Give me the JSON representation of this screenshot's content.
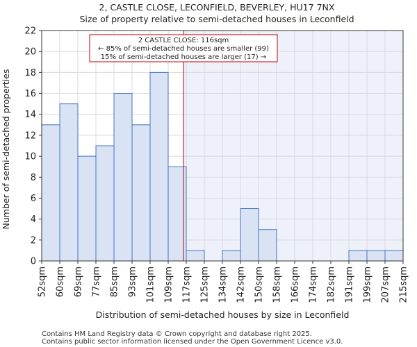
{
  "chart_data": {
    "type": "bar",
    "title_line1": "2, CASTLE CLOSE, LECONFIELD, BEVERLEY, HU17 7NX",
    "title_line2": "Size of property relative to semi-detached houses in Leconfield",
    "xlabel": "Distribution of semi-detached houses by size in Leconfield",
    "ylabel": "Number of semi-detached properties",
    "ylim": [
      0,
      22
    ],
    "yticks": [
      0,
      2,
      4,
      6,
      8,
      10,
      12,
      14,
      16,
      18,
      20,
      22
    ],
    "bin_edges": [
      "52sqm",
      "60sqm",
      "69sqm",
      "77sqm",
      "85sqm",
      "93sqm",
      "101sqm",
      "109sqm",
      "117sqm",
      "125sqm",
      "134sqm",
      "142sqm",
      "150sqm",
      "158sqm",
      "166sqm",
      "174sqm",
      "182sqm",
      "191sqm",
      "199sqm",
      "207sqm",
      "215sqm"
    ],
    "values": [
      13,
      15,
      10,
      11,
      16,
      13,
      18,
      9,
      1,
      0,
      1,
      5,
      3,
      0,
      0,
      0,
      0,
      1,
      1,
      1
    ],
    "property_marker_bin_position": 7.85,
    "annotation": {
      "line1": "2 CASTLE CLOSE: 116sqm",
      "line2": "← 85% of semi-detached houses are smaller (99)",
      "line3": "15% of semi-detached houses are larger (17) →"
    },
    "colors": {
      "bar_fill": "#dae3f3",
      "bar_stroke": "#4472c4",
      "marker": "#c00000",
      "highlight": "#eef1fa",
      "grid": "#d9d9d9"
    }
  },
  "footer": {
    "line1": "Contains HM Land Registry data © Crown copyright and database right 2025.",
    "line2": "Contains public sector information licensed under the Open Government Licence v3.0."
  }
}
